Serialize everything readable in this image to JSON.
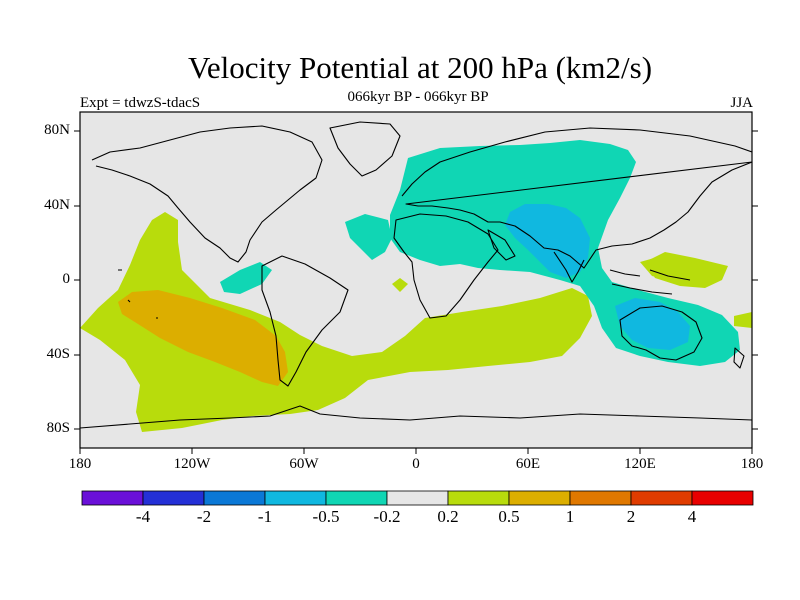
{
  "title": "Velocity Potential at 200 hPa (km2/s)",
  "subtitle": "066kyr BP - 066kyr BP",
  "experiment": "Expt = tdwzS-tdacS",
  "season": "JJA",
  "lat_labels": [
    "80N",
    "40N",
    "0",
    "40S",
    "80S"
  ],
  "lon_labels": [
    "180",
    "120W",
    "60W",
    "0",
    "60E",
    "120E",
    "180"
  ],
  "colorbar": {
    "colors": [
      "#6a10d8",
      "#2430d6",
      "#0a78d6",
      "#10b8e0",
      "#10d6b4",
      "#e6e6e6",
      "#b8dc0c",
      "#dcae00",
      "#e07800",
      "#e03c00",
      "#e80000"
    ],
    "labels": [
      "-4",
      "-2",
      "-1",
      "-0.5",
      "-0.2",
      "0.2",
      "0.5",
      "1",
      "2",
      "4"
    ]
  },
  "chart_data": {
    "type": "heatmap",
    "title": "Velocity Potential at 200 hPa (km2/s)",
    "subtitle": "066kyr BP - 066kyr BP",
    "xlim": [
      -180,
      180
    ],
    "ylim": [
      -90,
      90
    ],
    "levels": [
      -4,
      -2,
      -1,
      -0.5,
      -0.2,
      0.2,
      0.5,
      1,
      2,
      4
    ],
    "regions": [
      {
        "range": "0.2 to 0.5",
        "area": "tropical/subtropical eastern Pacific, South Atlantic, southern Indian Ocean, Southern Ocean, western tropical Pacific"
      },
      {
        "range": "0.5 to 1",
        "area": "southeastern Pacific"
      },
      {
        "range": "-0.5 to -0.2",
        "area": "Eurasia, North Africa, Indian Ocean, Maritime Continent, Australia, central Atlantic, eastern equatorial Pacific"
      },
      {
        "range": "-1 to -0.5",
        "area": "South Asia, Arabian Sea, Australia"
      }
    ]
  }
}
